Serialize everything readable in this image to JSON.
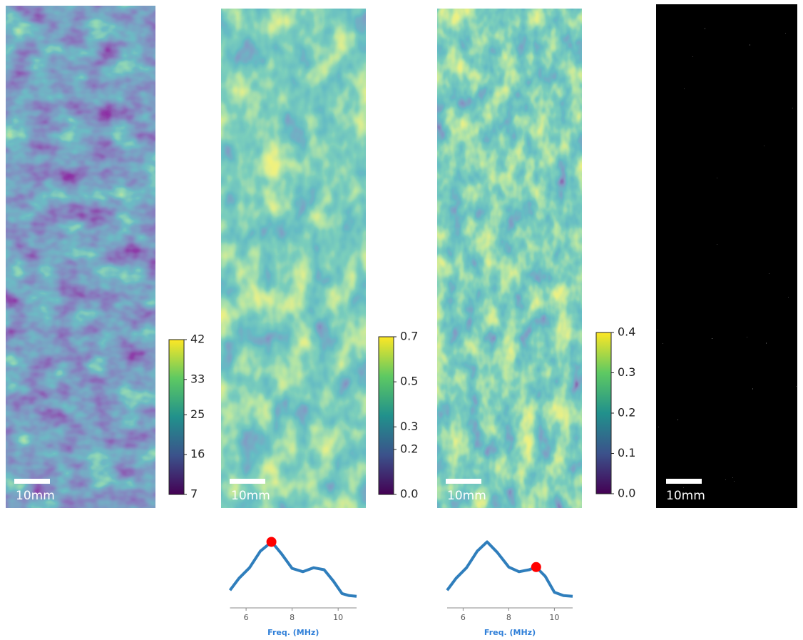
{
  "chart_data": [
    {
      "type": "heatmap",
      "colormap": "viridis",
      "scale_label": "10mm",
      "ylim": [
        7,
        42
      ],
      "yticks": [
        7,
        16,
        25,
        33,
        42
      ]
    },
    {
      "type": "heatmap",
      "colormap": "viridis",
      "scale_label": "10mm",
      "ylim": [
        0,
        0.7
      ],
      "yticks": [
        {
          "value": 0,
          "label": "0.0"
        },
        0.2,
        0.3,
        0.5,
        0.7
      ]
    },
    {
      "type": "heatmap",
      "colormap": "viridis",
      "scale_label": "10mm",
      "ylim": [
        0,
        0.4
      ],
      "yticks": [
        {
          "value": 0,
          "label": "0.0"
        },
        0.1,
        0.2,
        0.3,
        0.4
      ]
    },
    {
      "type": "image",
      "colormap": "binary",
      "scale_label": "10mm"
    },
    {
      "type": "line",
      "xlabel": "Freq. (MHz)",
      "color": "#2f7ebc",
      "xlim": [
        5.3,
        10.8
      ],
      "xticks": [
        6,
        8,
        10
      ],
      "ylim": [
        0,
        1
      ],
      "x": [
        5.3,
        5.69,
        6.15,
        6.62,
        7.11,
        7.54,
        8.0,
        8.47,
        8.93,
        9.39,
        9.79,
        10.17,
        10.48,
        10.8
      ],
      "values": [
        0.19,
        0.37,
        0.53,
        0.78,
        0.92,
        0.74,
        0.52,
        0.47,
        0.53,
        0.5,
        0.33,
        0.14,
        0.11,
        0.1
      ],
      "marker": {
        "x": 7.1,
        "value": 0.92,
        "color": "#ff0000"
      }
    },
    {
      "type": "line",
      "xlabel": "Freq. (MHz)",
      "color": "#2f7ebc",
      "xlim": [
        5.3,
        10.8
      ],
      "xticks": [
        6,
        8,
        10
      ],
      "ylim": [
        0,
        1
      ],
      "x": [
        5.3,
        5.69,
        6.15,
        6.62,
        7.05,
        7.5,
        8.0,
        8.45,
        8.9,
        9.2,
        9.6,
        10.0,
        10.4,
        10.8
      ],
      "values": [
        0.19,
        0.37,
        0.53,
        0.78,
        0.92,
        0.76,
        0.54,
        0.47,
        0.5,
        0.54,
        0.4,
        0.16,
        0.11,
        0.1
      ],
      "marker": {
        "x": 9.2,
        "value": 0.54,
        "color": "#ff0000"
      }
    }
  ]
}
